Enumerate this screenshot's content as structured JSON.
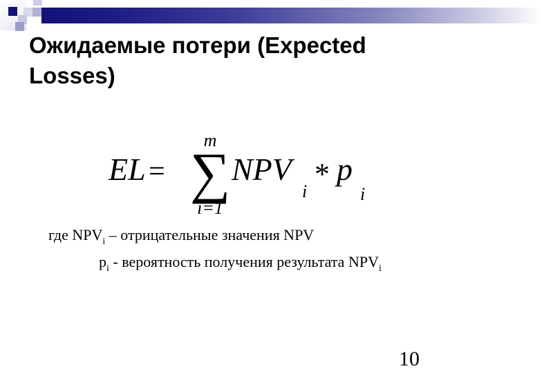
{
  "title": {
    "line1": "Ожидаемые потери (Expected",
    "line2": "Losses)"
  },
  "formula": {
    "lhs": "EL",
    "equals": "=",
    "sum_upper_limit": "m",
    "sum_symbol": "∑",
    "sum_lower_limit": "i=1",
    "term1": "NPV",
    "term1_subscript": "i",
    "multiply": "*",
    "term2": "p",
    "term2_subscript": "i"
  },
  "notes": {
    "line1": {
      "prefix": "где NPV",
      "subscript": "i",
      "rest": " – отрицательные значения NPV"
    },
    "line2": {
      "var": "p",
      "subscript": "i",
      "rest": " - вероятность получения результата NPV",
      "subscript2": "i"
    }
  },
  "footer": {
    "page_number": "10"
  },
  "colors": {
    "accent_navy": "#12127c",
    "lavender_light": "#d9d9ea",
    "lavender_medium": "#b1b1d5",
    "lavender_dark": "#9d9dc9",
    "text": "#000000",
    "background": "#ffffff"
  }
}
